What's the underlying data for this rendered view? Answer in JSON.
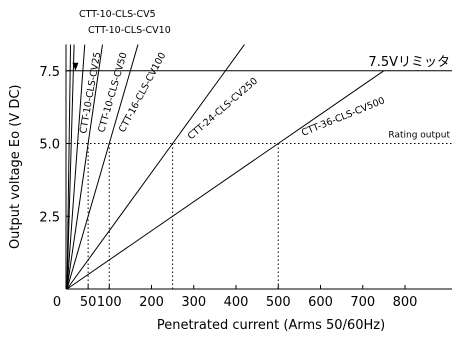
{
  "chart_data": {
    "type": "line",
    "xlabel": "Penetrated current (Arms 50/60Hz)",
    "ylabel": "Output voltage Eo (V DC)",
    "xlim": [
      0,
      900
    ],
    "ylim": [
      0,
      8.4
    ],
    "x_ticks": [
      0,
      50,
      100,
      200,
      300,
      400,
      500,
      600,
      700,
      800
    ],
    "x_tick_labels": [
      "0",
      "50",
      "100",
      "200",
      "300",
      "400",
      "500",
      "600",
      "700",
      "800"
    ],
    "y_ticks": [
      2.5,
      5.0,
      7.5
    ],
    "y_tick_labels": [
      "2.5",
      "5.0",
      "7.5"
    ],
    "series": [
      {
        "name": "CTT-10-CLS-CV5",
        "rated_current": 5,
        "points": [
          [
            0,
            0
          ],
          [
            7.5,
            7.5
          ],
          [
            8.4,
            8.4
          ]
        ]
      },
      {
        "name": "CTT-10-CLS-CV10",
        "rated_current": 10,
        "points": [
          [
            0,
            0
          ],
          [
            15,
            7.5
          ],
          [
            16.8,
            8.4
          ]
        ]
      },
      {
        "name": "CTT-10-CLS-CV25",
        "rated_current": 25,
        "points": [
          [
            0,
            0
          ],
          [
            37.5,
            7.5
          ],
          [
            42,
            8.4
          ]
        ]
      },
      {
        "name": "CTT-10-CLS-CV50",
        "rated_current": 50,
        "points": [
          [
            0,
            0
          ],
          [
            50,
            5.0
          ],
          [
            75,
            7.5
          ],
          [
            84,
            8.4
          ]
        ]
      },
      {
        "name": "CTT-16-CLS-CV100",
        "rated_current": 100,
        "points": [
          [
            0,
            0
          ],
          [
            100,
            5.0
          ],
          [
            150,
            7.5
          ],
          [
            168,
            8.4
          ]
        ]
      },
      {
        "name": "CTT-24-CLS-CV250",
        "rated_current": 250,
        "points": [
          [
            0,
            0
          ],
          [
            250,
            5.0
          ],
          [
            375,
            7.5
          ],
          [
            420,
            8.4
          ]
        ]
      },
      {
        "name": "CTT-36-CLS-CV500",
        "rated_current": 500,
        "points": [
          [
            0,
            0
          ],
          [
            500,
            5.0
          ],
          [
            750,
            7.5
          ]
        ]
      }
    ],
    "annotations": {
      "limit_value": 7.5,
      "limit_label": "7.5Vリミッタ",
      "rating_value": 5.0,
      "rating_label": "Rating output"
    },
    "grid": false,
    "legend": "none"
  }
}
